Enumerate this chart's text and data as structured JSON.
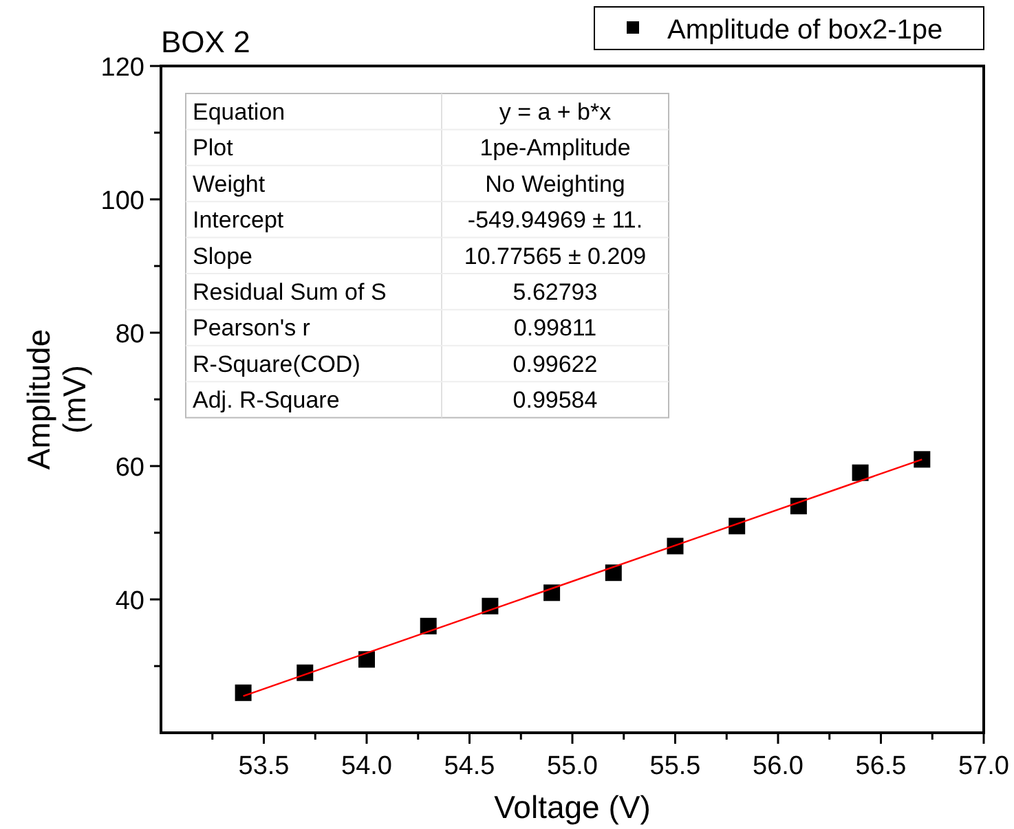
{
  "chart_data": {
    "type": "scatter",
    "title": "BOX 2",
    "xlabel": "Voltage (V)",
    "ylabel": "Amplitude (mV)",
    "xlim": [
      53,
      57
    ],
    "ylim": [
      20,
      120
    ],
    "xticks": [
      {
        "value": 53.25,
        "label": null
      },
      53.5,
      {
        "value": 53.75,
        "label": null
      },
      {
        "value": 54,
        "label": "54.0"
      },
      {
        "value": 54.25,
        "label": null
      },
      54.5,
      {
        "value": 54.75,
        "label": null
      },
      {
        "value": 55,
        "label": "55.0"
      },
      {
        "value": 55.25,
        "label": null
      },
      55.5,
      {
        "value": 55.75,
        "label": null
      },
      {
        "value": 56,
        "label": "56.0"
      },
      {
        "value": 56.25,
        "label": null
      },
      56.5,
      {
        "value": 56.75,
        "label": null
      },
      {
        "value": 57,
        "label": "57.0"
      }
    ],
    "yticks": [
      {
        "value": 30,
        "label": null
      },
      40,
      {
        "value": 50,
        "label": null
      },
      60,
      {
        "value": 70,
        "label": null
      },
      80,
      {
        "value": 90,
        "label": null
      },
      100,
      {
        "value": 110,
        "label": null
      },
      120
    ],
    "series": [
      {
        "name": "Amplitude of box2-1pe",
        "color": "#000000",
        "marker": "square",
        "x": [
          53.4,
          53.7,
          54.0,
          54.3,
          54.6,
          54.9,
          55.2,
          55.5,
          55.8,
          56.1,
          56.4,
          56.7
        ],
        "values": [
          26,
          29,
          31,
          36,
          39,
          41,
          44,
          48,
          51,
          54,
          59,
          61
        ]
      },
      {
        "type": "line",
        "color": "#ff0000",
        "marker": "none",
        "line_style": "solid",
        "x": [
          53.4,
          56.7
        ],
        "values": [
          25.5,
          61.0
        ]
      }
    ],
    "legend": "top right",
    "grid": false,
    "annotations": [
      "Equation",
      "y = a + b*x",
      "Plot",
      "1pe-Amplitude",
      "Weight",
      "No Weighting",
      "Intercept",
      "-549.94969 ± 11.",
      "Slope",
      "10.77565 ± 0.209",
      "Residual Sum of S",
      "5.62793",
      "Pearson's r",
      "0.99811",
      "R-Square(COD)",
      "0.99622",
      "Adj. R-Square",
      "0.99584"
    ]
  }
}
